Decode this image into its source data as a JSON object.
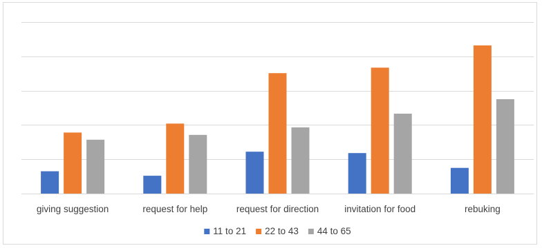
{
  "chart_data": {
    "type": "bar",
    "categories": [
      "giving suggestion",
      "request for help",
      "request for direction",
      "invitation for food",
      "rebuking"
    ],
    "series": [
      {
        "name": "11 to 21",
        "color": "#4472C4",
        "values": [
          6.5,
          5.2,
          12.2,
          11.8,
          7.5
        ]
      },
      {
        "name": "22 to 43",
        "color": "#ED7D31",
        "values": [
          17.8,
          20.4,
          35.1,
          36.7,
          43.2
        ]
      },
      {
        "name": "44 to 65",
        "color": "#A5A5A5",
        "values": [
          15.7,
          17.1,
          19.3,
          23.3,
          27.5
        ]
      }
    ],
    "ylim": [
      0,
      50
    ],
    "gridlines": [
      0,
      10,
      20,
      30,
      40,
      50
    ],
    "grid": true,
    "legend_position": "bottom"
  }
}
